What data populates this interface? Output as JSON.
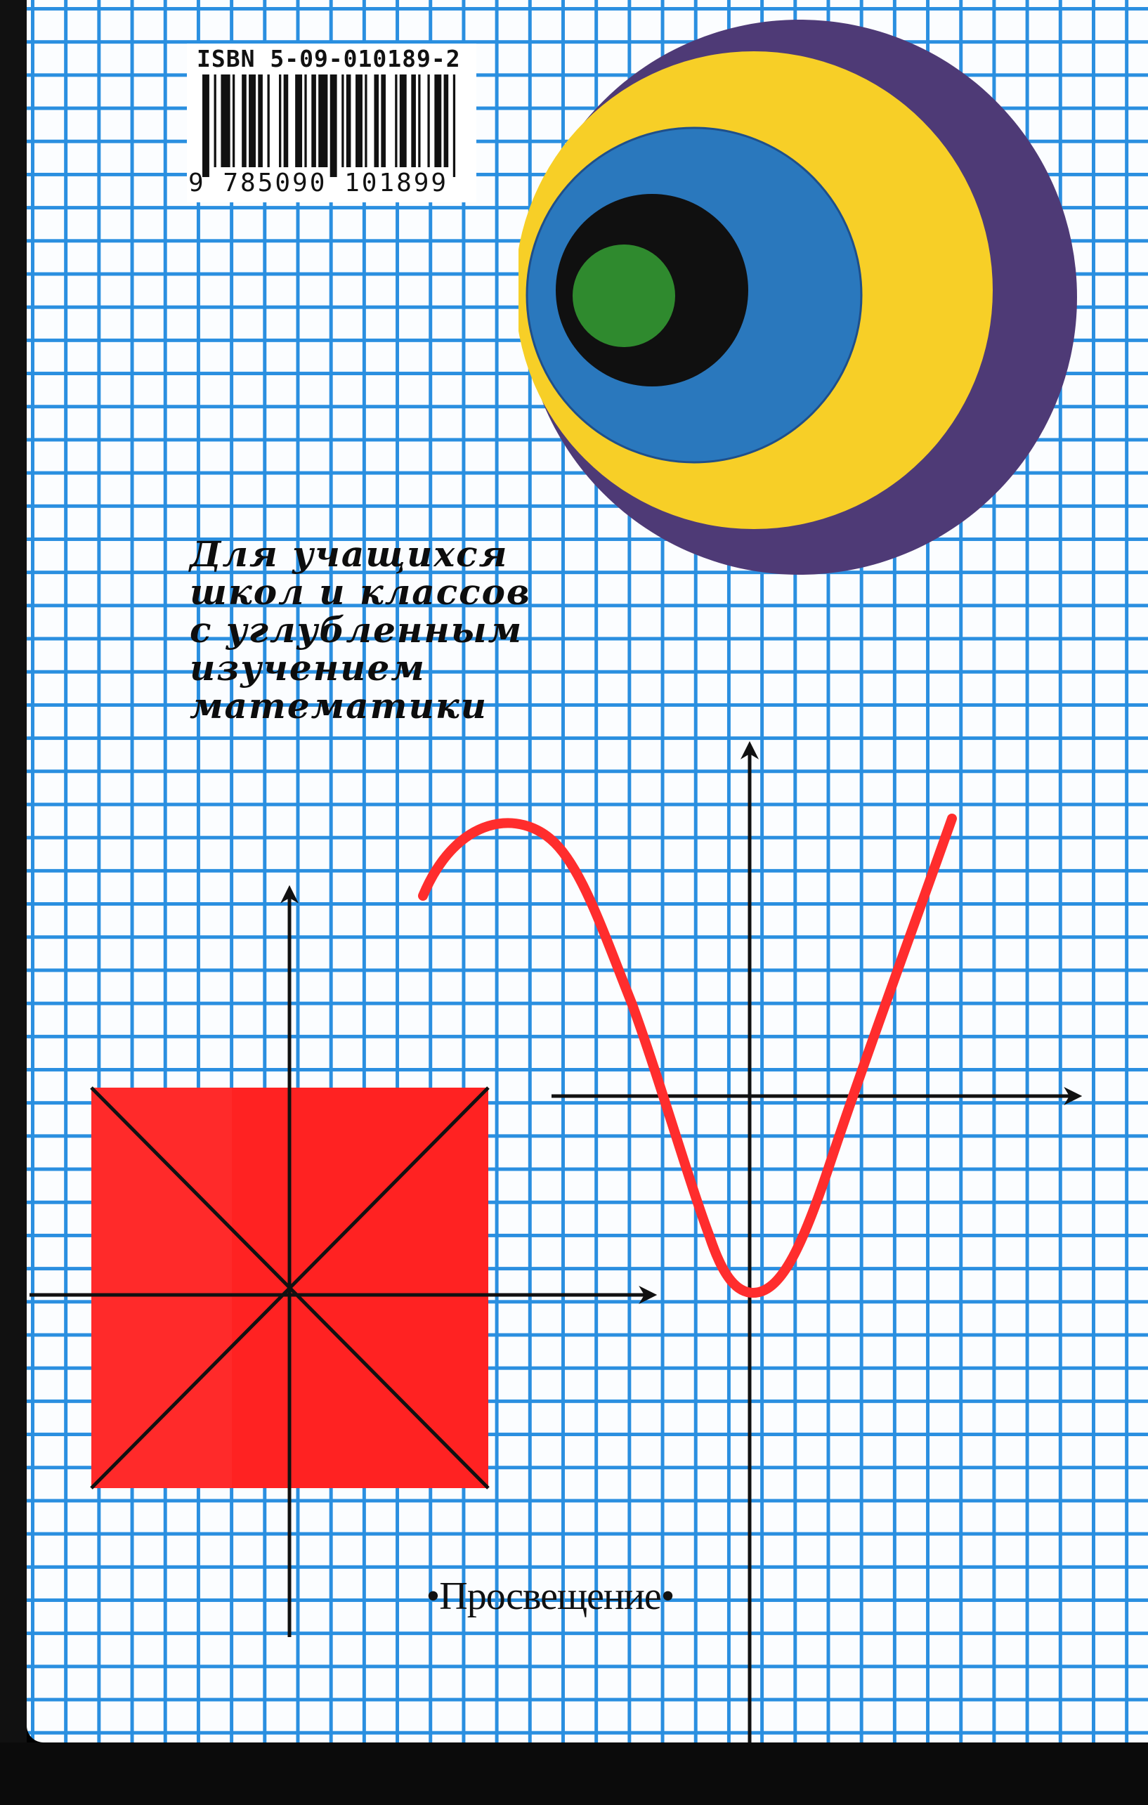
{
  "barcode": {
    "isbn": "ISBN 5-09-010189-2",
    "ean": "9 785090 101899"
  },
  "audience": {
    "lines": [
      "Для учащихся",
      "школ и классов",
      "с углубленным",
      "изучением",
      "математики"
    ]
  },
  "publisher": {
    "name": "•Просвещение•"
  },
  "colors": {
    "grid": "#2a8fe0",
    "paper": "#fbfdff",
    "circle_outer": "#4e3a76",
    "circle_yellow": "#f7cf27",
    "circle_blue": "#2a78bd",
    "circle_black": "#101010",
    "circle_green": "#2f8a2e",
    "square": "#ff2a2a",
    "curve": "#ff2d2d"
  }
}
